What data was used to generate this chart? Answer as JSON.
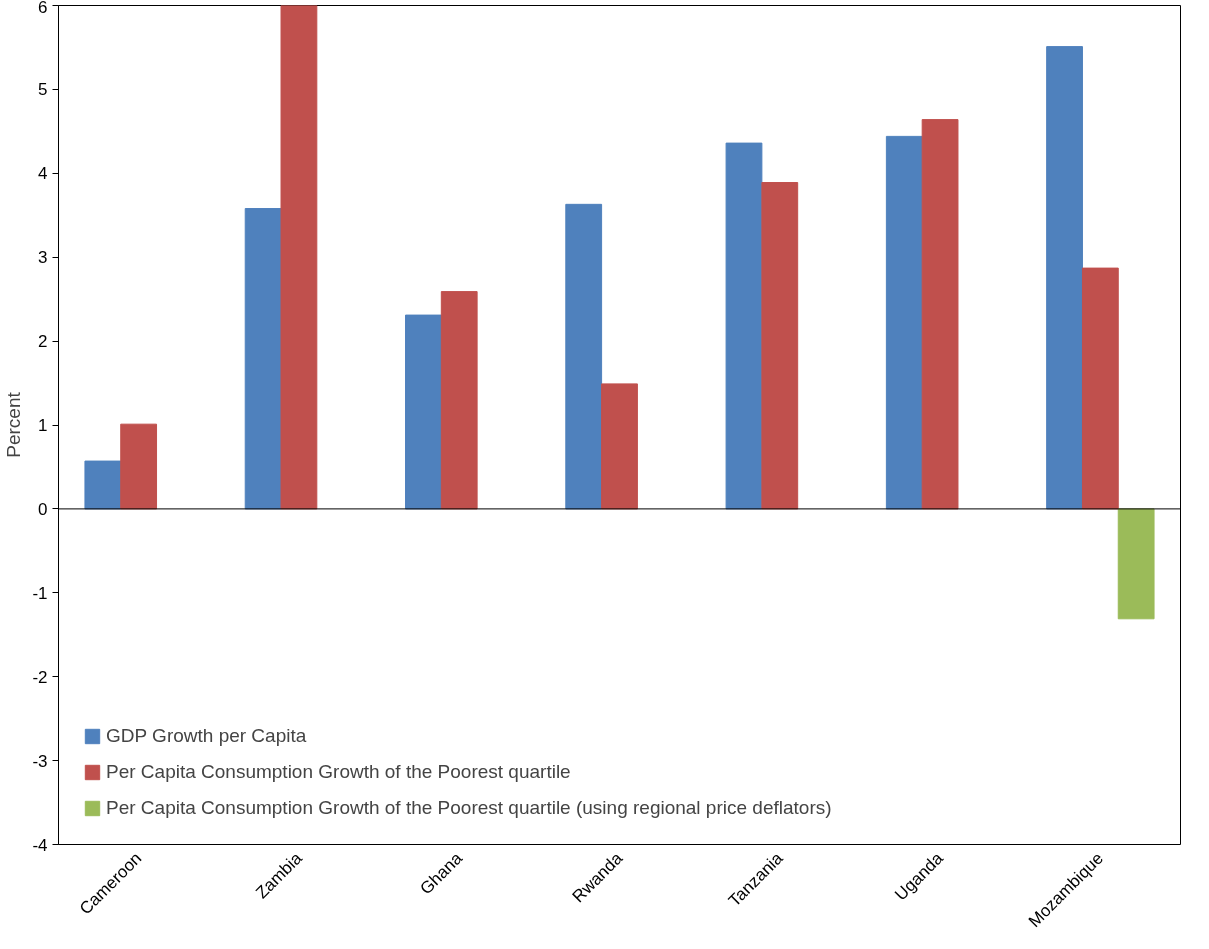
{
  "chart_data": {
    "type": "bar",
    "ylabel": "Percent",
    "categories": [
      "Cameroon",
      "Zambia",
      "Ghana",
      "Rwanda",
      "Tanzania",
      "Uganda",
      "Mozambique"
    ],
    "series": [
      {
        "name": "GDP Growth per Capita",
        "color": "#4f81bd",
        "values": [
          0.57,
          3.58,
          2.31,
          3.63,
          4.36,
          4.44,
          5.51
        ]
      },
      {
        "name": "Per Capita Consumption Growth of the Poorest quartile",
        "color": "#c0504d",
        "values": [
          1.01,
          6.0,
          2.59,
          1.49,
          3.89,
          4.64,
          2.87
        ]
      },
      {
        "name": "Per Capita Consumption Growth of the Poorest quartile (using regional price deflators)",
        "color": "#9bbb59",
        "values": [
          null,
          null,
          null,
          null,
          null,
          null,
          -1.31
        ]
      }
    ],
    "ylim": [
      -4,
      6
    ],
    "yticks": [
      -4,
      -3,
      -2,
      -1,
      0,
      1,
      2,
      3,
      4,
      5,
      6
    ],
    "ref_lines": [
      {
        "axis": "y",
        "value": 0,
        "color": "#000000"
      }
    ],
    "legend": "bottom left"
  }
}
